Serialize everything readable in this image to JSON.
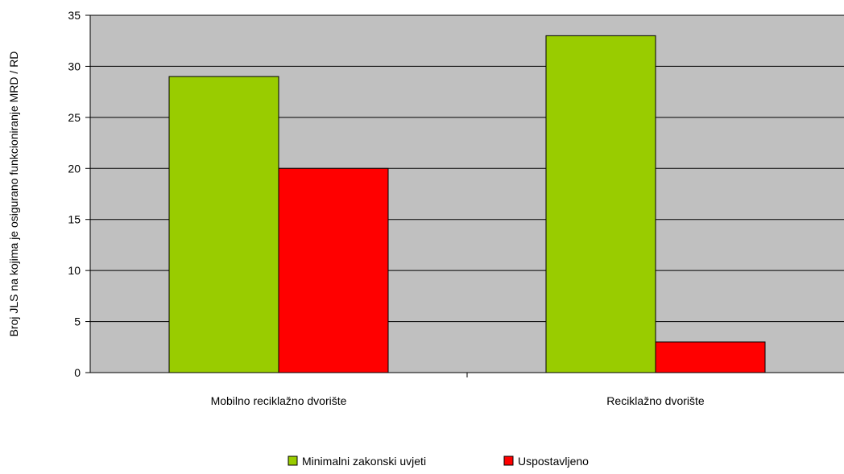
{
  "chart_data": {
    "type": "bar",
    "title": "",
    "xlabel": "",
    "ylabel": "Broj JLS na kojima je osigurano funkcioniranje MRD / RD",
    "categories": [
      "Mobilno reciklažno dvorište",
      "Reciklažno dvorište"
    ],
    "series": [
      {
        "name": "Minimalni zakonski uvjeti",
        "values": [
          29,
          33
        ],
        "color": "#99cc00"
      },
      {
        "name": "Uspostavljeno",
        "values": [
          20,
          3
        ],
        "color": "#ff0000"
      }
    ],
    "ylim": [
      0,
      35
    ],
    "yticks": [
      0,
      5,
      10,
      15,
      20,
      25,
      30,
      35
    ],
    "grid": true,
    "plot_background": "#c0c0c0",
    "legend_position": "bottom-center"
  }
}
